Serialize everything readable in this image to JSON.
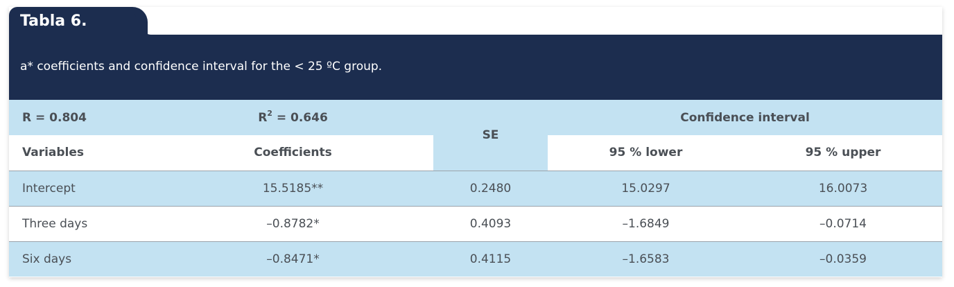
{
  "table": {
    "label": "Tabla 6.",
    "caption": "a* coefficients and confidence interval for the < 25 ºC group.",
    "header_row1": {
      "r": "R = 0.804",
      "r2_prefix": "R",
      "r2_sup": "2",
      "r2_suffix": " = 0.646",
      "se": "SE",
      "ci": "Confidence interval"
    },
    "header_row2": {
      "variables": "Variables",
      "coefficients": "Coefficients",
      "lower": "95 % lower",
      "upper": "95 % upper"
    },
    "rows": [
      {
        "variable": "Intercept",
        "coefficient": "15.5185**",
        "se": "0.2480",
        "lower": "15.0297",
        "upper": "16.0073"
      },
      {
        "variable": "Three days",
        "coefficient": "–0.8782*",
        "se": "0.4093",
        "lower": "–1.6849",
        "upper": "–0.0714"
      },
      {
        "variable": "Six days",
        "coefficient": "–0.8471*",
        "se": "0.4115",
        "lower": "–1.6583",
        "upper": "–0.0359"
      }
    ]
  },
  "colors": {
    "header_navy": "#1c2d4f",
    "row_blue": "#c3e2f2",
    "text": "#4a4f55"
  }
}
